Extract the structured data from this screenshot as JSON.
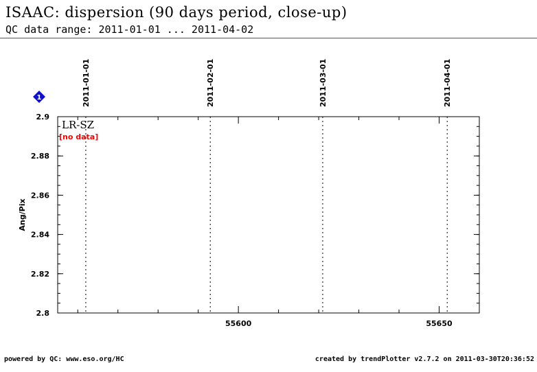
{
  "header": {
    "title": "ISAAC: dispersion (90 days period, close-up)",
    "subtitle": "QC data range: 2011-01-01 ... 2011-04-02"
  },
  "footer": {
    "left": "powered by QC: www.eso.org/HC",
    "right": "created by trendPlotter v2.7.2 on 2011-03-30T20:36:52"
  },
  "colors": {
    "no_data": "#ff0000",
    "marker": "#1010cc"
  },
  "chart_data": {
    "type": "scatter",
    "title": "",
    "ylabel": "Ang/Pix",
    "xlabel": "",
    "xlim": [
      55555,
      55660
    ],
    "ylim": [
      2.8,
      2.9
    ],
    "yticks": [
      "2.9",
      "2.88",
      "2.86",
      "2.84",
      "2.82",
      "2.8"
    ],
    "ytick_values": [
      2.9,
      2.88,
      2.86,
      2.84,
      2.82,
      2.8
    ],
    "xtick_labels": [
      "55600",
      "55650"
    ],
    "xtick_values": [
      55600,
      55650
    ],
    "date_markers": [
      {
        "label": "2011-01-01",
        "mjd": 55562
      },
      {
        "label": "2011-02-01",
        "mjd": 55593
      },
      {
        "label": "2011-03-01",
        "mjd": 55621
      },
      {
        "label": "2011-04-01",
        "mjd": 55652
      }
    ],
    "panel_label": "LR-SZ",
    "status_text": "[no data]",
    "marker_label": "1",
    "series": []
  }
}
